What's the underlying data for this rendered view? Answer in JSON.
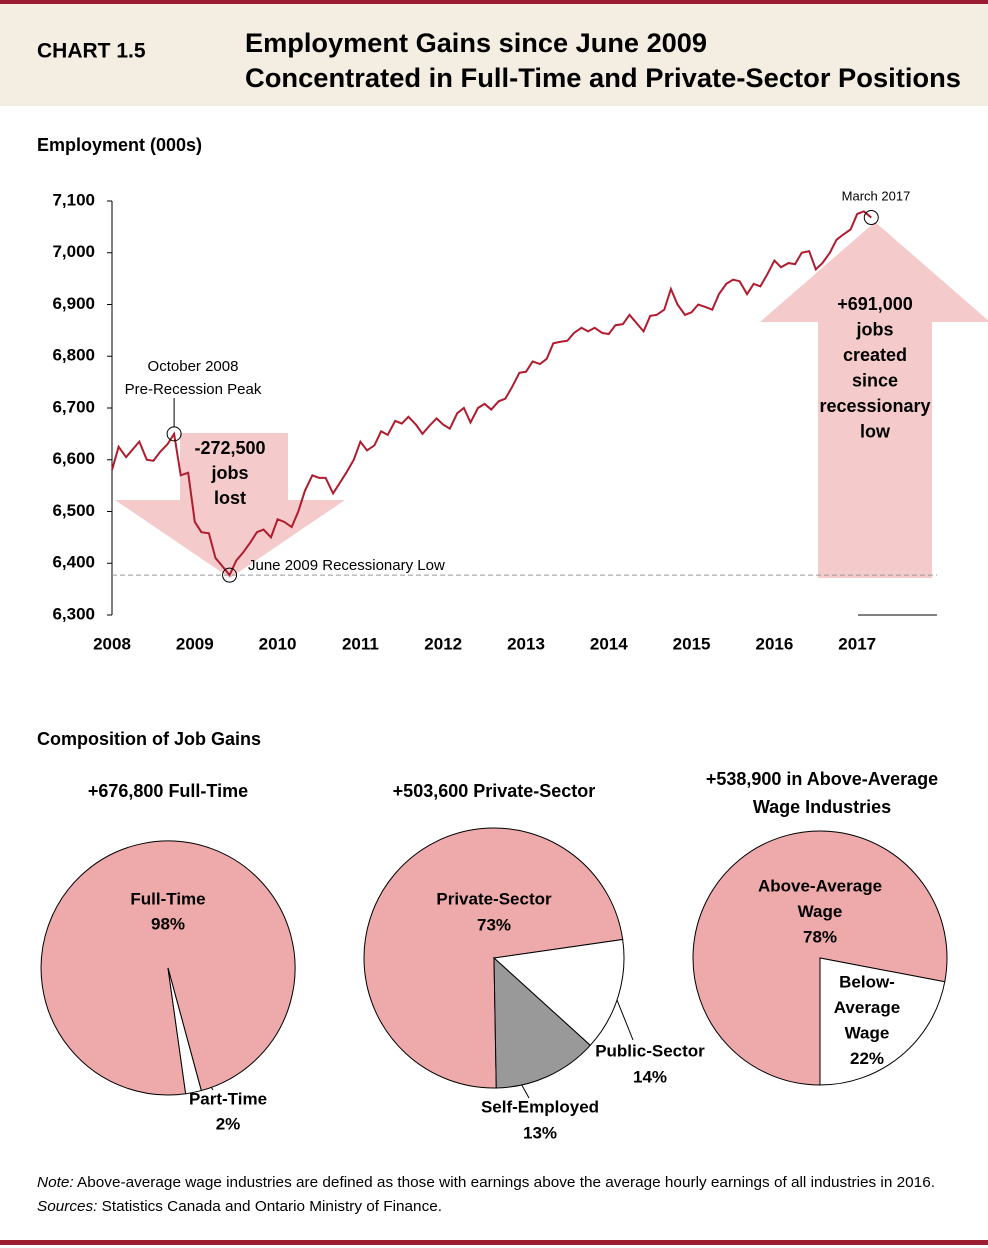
{
  "header": {
    "label": "CHART 1.5",
    "title": [
      "Employment Gains since June 2009",
      "Concentrated in Full-Time and Private-Sector Positions"
    ]
  },
  "section_title": "Composition of Job Gains",
  "note": {
    "label": "Note:",
    "text": " Above-average wage industries are defined as those with earnings above the average hourly earnings of all industries in 2016."
  },
  "sources": {
    "label": "Sources:",
    "text": " Statistics Canada and Ontario Ministry of Finance."
  },
  "chart_data": [
    {
      "type": "line",
      "y_label": "Employment (000s)",
      "color": "#b01c2e",
      "xlim": [
        2008,
        2018
      ],
      "xticks": [
        2008,
        2009,
        2010,
        2011,
        2012,
        2013,
        2014,
        2015,
        2016,
        2017
      ],
      "ylim": [
        6300,
        7100
      ],
      "yticks": [
        {
          "value": 6300,
          "label": "6,300"
        },
        {
          "value": 6400,
          "label": "6,400"
        },
        {
          "value": 6500,
          "label": "6,500"
        },
        {
          "value": 6600,
          "label": "6,600"
        },
        {
          "value": 6700,
          "label": "6,700"
        },
        {
          "value": 6800,
          "label": "6,800"
        },
        {
          "value": 6900,
          "label": "6,900"
        },
        {
          "value": 7000,
          "label": "7,000"
        },
        {
          "value": 7100,
          "label": "7,100"
        }
      ],
      "x": [
        2008.0,
        2008.08,
        2008.17,
        2008.25,
        2008.33,
        2008.42,
        2008.5,
        2008.58,
        2008.67,
        2008.75,
        2008.83,
        2008.92,
        2009.0,
        2009.08,
        2009.17,
        2009.25,
        2009.33,
        2009.42,
        2009.5,
        2009.58,
        2009.67,
        2009.75,
        2009.83,
        2009.92,
        2010.0,
        2010.08,
        2010.17,
        2010.25,
        2010.33,
        2010.42,
        2010.5,
        2010.58,
        2010.67,
        2010.75,
        2010.83,
        2010.92,
        2011.0,
        2011.08,
        2011.17,
        2011.25,
        2011.33,
        2011.42,
        2011.5,
        2011.58,
        2011.67,
        2011.75,
        2011.83,
        2011.92,
        2012.0,
        2012.08,
        2012.17,
        2012.25,
        2012.33,
        2012.42,
        2012.5,
        2012.58,
        2012.67,
        2012.75,
        2012.83,
        2012.92,
        2013.0,
        2013.08,
        2013.17,
        2013.25,
        2013.33,
        2013.42,
        2013.5,
        2013.58,
        2013.67,
        2013.75,
        2013.83,
        2013.92,
        2014.0,
        2014.08,
        2014.17,
        2014.25,
        2014.33,
        2014.42,
        2014.5,
        2014.58,
        2014.67,
        2014.75,
        2014.83,
        2014.92,
        2015.0,
        2015.08,
        2015.17,
        2015.25,
        2015.33,
        2015.42,
        2015.5,
        2015.58,
        2015.67,
        2015.75,
        2015.83,
        2015.92,
        2016.0,
        2016.08,
        2016.17,
        2016.25,
        2016.33,
        2016.42,
        2016.5,
        2016.58,
        2016.67,
        2016.75,
        2016.83,
        2016.92,
        2017.0,
        2017.08,
        2017.17
      ],
      "values": [
        6580,
        6625,
        6605,
        6620,
        6635,
        6600,
        6598,
        6615,
        6630,
        6650,
        6570,
        6575,
        6480,
        6460,
        6458,
        6410,
        6395,
        6377,
        6405,
        6420,
        6440,
        6460,
        6465,
        6450,
        6485,
        6480,
        6470,
        6500,
        6540,
        6570,
        6565,
        6565,
        6535,
        6555,
        6575,
        6600,
        6635,
        6618,
        6628,
        6655,
        6648,
        6675,
        6670,
        6683,
        6668,
        6650,
        6665,
        6680,
        6668,
        6660,
        6690,
        6700,
        6672,
        6700,
        6708,
        6697,
        6713,
        6718,
        6740,
        6768,
        6770,
        6790,
        6785,
        6795,
        6825,
        6828,
        6830,
        6845,
        6855,
        6848,
        6855,
        6845,
        6843,
        6860,
        6862,
        6880,
        6865,
        6848,
        6878,
        6880,
        6890,
        6930,
        6900,
        6880,
        6885,
        6900,
        6895,
        6890,
        6920,
        6940,
        6948,
        6945,
        6920,
        6940,
        6935,
        6960,
        6985,
        6972,
        6980,
        6978,
        7000,
        7003,
        6968,
        6980,
        7000,
        7025,
        7035,
        7045,
        7075,
        7080,
        7068
      ],
      "annotations": [
        [
          "October 2008",
          "Pre-Recession Peak"
        ],
        [
          "-272,500",
          "jobs",
          "lost"
        ],
        [
          "June 2009 Recessionary Low"
        ],
        [
          "March 2017"
        ],
        [
          "+691,000",
          "jobs",
          "created",
          "since",
          "recessionary",
          "low"
        ]
      ]
    },
    {
      "type": "pie",
      "title": [
        "+676,800 Full-Time"
      ],
      "categories": [
        [
          "Full-Time"
        ],
        [
          "Part-Time"
        ]
      ],
      "values": [
        98,
        2
      ],
      "value_labels": [
        "98%",
        "2%"
      ],
      "colors": [
        "#eeaaaa",
        "#ffffff"
      ]
    },
    {
      "type": "pie",
      "title": [
        "+503,600 Private-Sector"
      ],
      "categories": [
        [
          "Private-Sector"
        ],
        [
          "Public-Sector"
        ],
        [
          "Self-Employed"
        ]
      ],
      "values": [
        73,
        14,
        13
      ],
      "value_labels": [
        "73%",
        "14%",
        "13%"
      ],
      "colors": [
        "#eeaaaa",
        "#ffffff",
        "#999999"
      ]
    },
    {
      "type": "pie",
      "title": [
        "+538,900 in Above-Average",
        "Wage Industries"
      ],
      "categories": [
        [
          "Above-Average",
          "Wage"
        ],
        [
          "Below-",
          "Average",
          "Wage"
        ]
      ],
      "values": [
        78,
        22
      ],
      "value_labels": [
        "78%",
        "22%"
      ],
      "colors": [
        "#eeaaaa",
        "#ffffff"
      ]
    }
  ]
}
